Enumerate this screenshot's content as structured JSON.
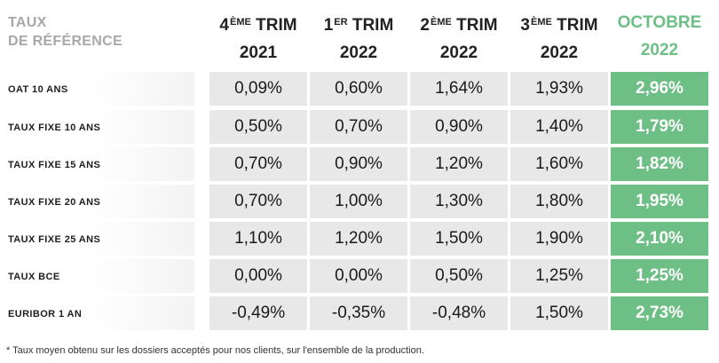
{
  "header": {
    "ref_line1": "TAUX",
    "ref_line2": "DE RÉFÉRENCE"
  },
  "columns": [
    {
      "num": "4",
      "sup": "ÈME",
      "word": " TRIM",
      "year": "2021",
      "highlight": false
    },
    {
      "num": "1",
      "sup": "ER",
      "word": " TRIM",
      "year": "2022",
      "highlight": false
    },
    {
      "num": "2",
      "sup": "ÈME",
      "word": " TRIM",
      "year": "2022",
      "highlight": false
    },
    {
      "num": "3",
      "sup": "ÈME",
      "word": " TRIM",
      "year": "2022",
      "highlight": false
    },
    {
      "num": "",
      "sup": "",
      "word": "OCTOBRE",
      "year": "2022",
      "highlight": true
    }
  ],
  "rows": [
    {
      "label": "OAT 10 ANS",
      "values": [
        "0,09%",
        "0,60%",
        "1,64%",
        "1,93%",
        "2,96%"
      ]
    },
    {
      "label": "TAUX FIXE 10 ANS",
      "values": [
        "0,50%",
        "0,70%",
        "0,90%",
        "1,40%",
        "1,79%"
      ]
    },
    {
      "label": "TAUX FIXE 15 ANS",
      "values": [
        "0,70%",
        "0,90%",
        "1,20%",
        "1,60%",
        "1,82%"
      ]
    },
    {
      "label": "TAUX FIXE 20 ANS",
      "values": [
        "0,70%",
        "1,00%",
        "1,30%",
        "1,80%",
        "1,95%"
      ]
    },
    {
      "label": "TAUX FIXE 25 ANS",
      "values": [
        "1,10%",
        "1,20%",
        "1,50%",
        "1,90%",
        "2,10%"
      ]
    },
    {
      "label": "TAUX BCE",
      "values": [
        "0,00%",
        "0,00%",
        "0,50%",
        "1,25%",
        "1,25%"
      ]
    },
    {
      "label": "EURIBOR 1 AN",
      "values": [
        "-0,49%",
        "-0,35%",
        "-0,48%",
        "1,50%",
        "2,73%"
      ]
    }
  ],
  "footnote": "* Taux moyen obtenu sur les dossiers acceptés pour nos clients, sur l'ensemble de la production.",
  "colors": {
    "highlight_green": "#6dbf85",
    "cell_grey": "#e8e8e8",
    "header_grey": "#a8a8a8"
  }
}
